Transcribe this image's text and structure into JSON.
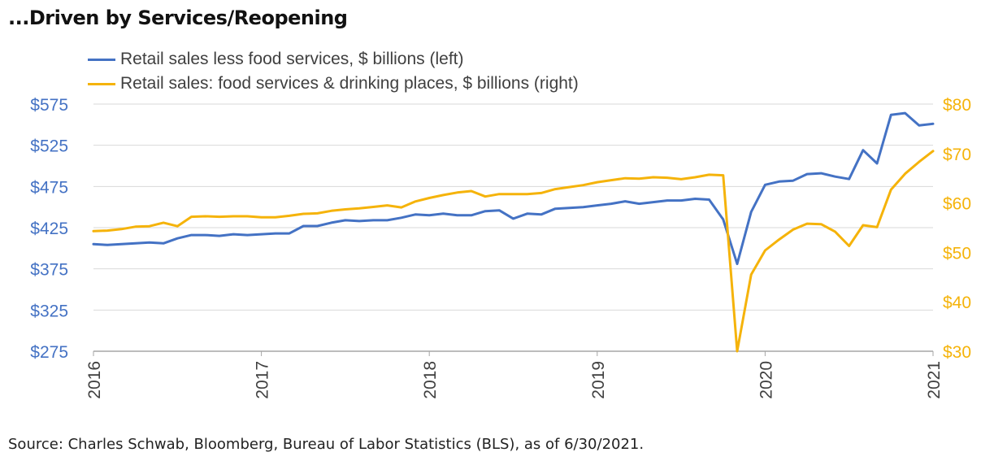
{
  "title": "...Driven by Services/Reopening",
  "source": "Source: Charles Schwab, Bloomberg, Bureau of Labor Statistics (BLS), as of 6/30/2021.",
  "colors": {
    "left_series": "#4472c4",
    "right_series": "#f5b30a",
    "grid": "#d9d9d9",
    "axis": "#a6a6a6"
  },
  "chart_data": {
    "type": "line",
    "legend_position": "top-left",
    "grid": true,
    "x_tick_labels": [
      "2016",
      "2017",
      "2018",
      "2019",
      "2020",
      "2021"
    ],
    "y_left": {
      "ticks": [
        275,
        325,
        375,
        425,
        475,
        525,
        575
      ],
      "tick_labels": [
        "$275",
        "$325",
        "$375",
        "$425",
        "$475",
        "$525",
        "$575"
      ],
      "range": [
        275,
        575
      ]
    },
    "y_right": {
      "ticks": [
        30,
        40,
        50,
        60,
        70,
        80
      ],
      "tick_labels": [
        "$30",
        "$40",
        "$50",
        "$60",
        "$70",
        "$80"
      ],
      "range": [
        30,
        80
      ]
    },
    "x_range": [
      "2016-01",
      "2021-01"
    ],
    "series": [
      {
        "name": "Retail sales less food services, $ billions (left)",
        "axis": "left",
        "x": [
          "2016-01",
          "2016-02",
          "2016-03",
          "2016-04",
          "2016-05",
          "2016-06",
          "2016-07",
          "2016-08",
          "2016-09",
          "2016-10",
          "2016-11",
          "2016-12",
          "2017-01",
          "2017-02",
          "2017-03",
          "2017-04",
          "2017-05",
          "2017-06",
          "2017-07",
          "2017-08",
          "2017-09",
          "2017-10",
          "2017-11",
          "2017-12",
          "2018-01",
          "2018-02",
          "2018-03",
          "2018-04",
          "2018-05",
          "2018-06",
          "2018-07",
          "2018-08",
          "2018-09",
          "2018-10",
          "2018-11",
          "2018-12",
          "2019-01",
          "2019-02",
          "2019-03",
          "2019-04",
          "2019-05",
          "2019-06",
          "2019-07",
          "2019-08",
          "2019-09",
          "2019-10",
          "2019-11",
          "2019-12",
          "2020-01",
          "2020-02",
          "2020-03",
          "2020-04",
          "2020-05",
          "2020-06",
          "2020-07",
          "2020-08",
          "2020-09",
          "2020-10",
          "2020-11",
          "2020-12",
          "2021-01"
        ],
        "values": [
          405,
          404,
          405,
          406,
          407,
          406,
          412,
          416,
          416,
          415,
          417,
          416,
          417,
          418,
          418,
          427,
          427,
          431,
          434,
          433,
          434,
          434,
          437,
          441,
          440,
          442,
          440,
          440,
          445,
          446,
          436,
          442,
          441,
          448,
          449,
          450,
          452,
          454,
          457,
          454,
          456,
          458,
          458,
          460,
          459,
          435,
          381,
          444,
          477,
          481,
          482,
          490,
          491,
          487,
          484,
          519,
          503,
          562,
          564,
          549,
          551
        ],
        "partial": false
      },
      {
        "name": "Retail sales: food services & drinking places, $ billions (right)",
        "axis": "right",
        "x": [
          "2016-01",
          "2016-02",
          "2016-03",
          "2016-04",
          "2016-05",
          "2016-06",
          "2016-07",
          "2016-08",
          "2016-09",
          "2016-10",
          "2016-11",
          "2016-12",
          "2017-01",
          "2017-02",
          "2017-03",
          "2017-04",
          "2017-05",
          "2017-06",
          "2017-07",
          "2017-08",
          "2017-09",
          "2017-10",
          "2017-11",
          "2017-12",
          "2018-01",
          "2018-02",
          "2018-03",
          "2018-04",
          "2018-05",
          "2018-06",
          "2018-07",
          "2018-08",
          "2018-09",
          "2018-10",
          "2018-11",
          "2018-12",
          "2019-01",
          "2019-02",
          "2019-03",
          "2019-04",
          "2019-05",
          "2019-06",
          "2019-07",
          "2019-08",
          "2019-09",
          "2019-10",
          "2019-11",
          "2019-12",
          "2020-01",
          "2020-02",
          "2020-03",
          "2020-04",
          "2020-05",
          "2020-06",
          "2020-07",
          "2020-08",
          "2020-09",
          "2020-10",
          "2020-11",
          "2020-12",
          "2021-01"
        ],
        "values": [
          54.3,
          54.4,
          54.7,
          55.2,
          55.3,
          56.0,
          55.3,
          57.2,
          57.3,
          57.2,
          57.3,
          57.3,
          57.1,
          57.1,
          57.4,
          57.8,
          57.9,
          58.4,
          58.7,
          58.9,
          59.2,
          59.5,
          59.1,
          60.3,
          61.0,
          61.6,
          62.1,
          62.4,
          61.3,
          61.8,
          61.8,
          61.8,
          62.0,
          62.8,
          63.2,
          63.6,
          64.2,
          64.6,
          65.0,
          64.9,
          65.2,
          65.1,
          64.8,
          65.2,
          65.7,
          65.6,
          30.0,
          45.5,
          50.4,
          52.6,
          54.6,
          55.8,
          55.7,
          54.2,
          51.3,
          55.5,
          55.1,
          62.7,
          65.9,
          68.3,
          70.5
        ],
        "partial": false
      }
    ]
  }
}
